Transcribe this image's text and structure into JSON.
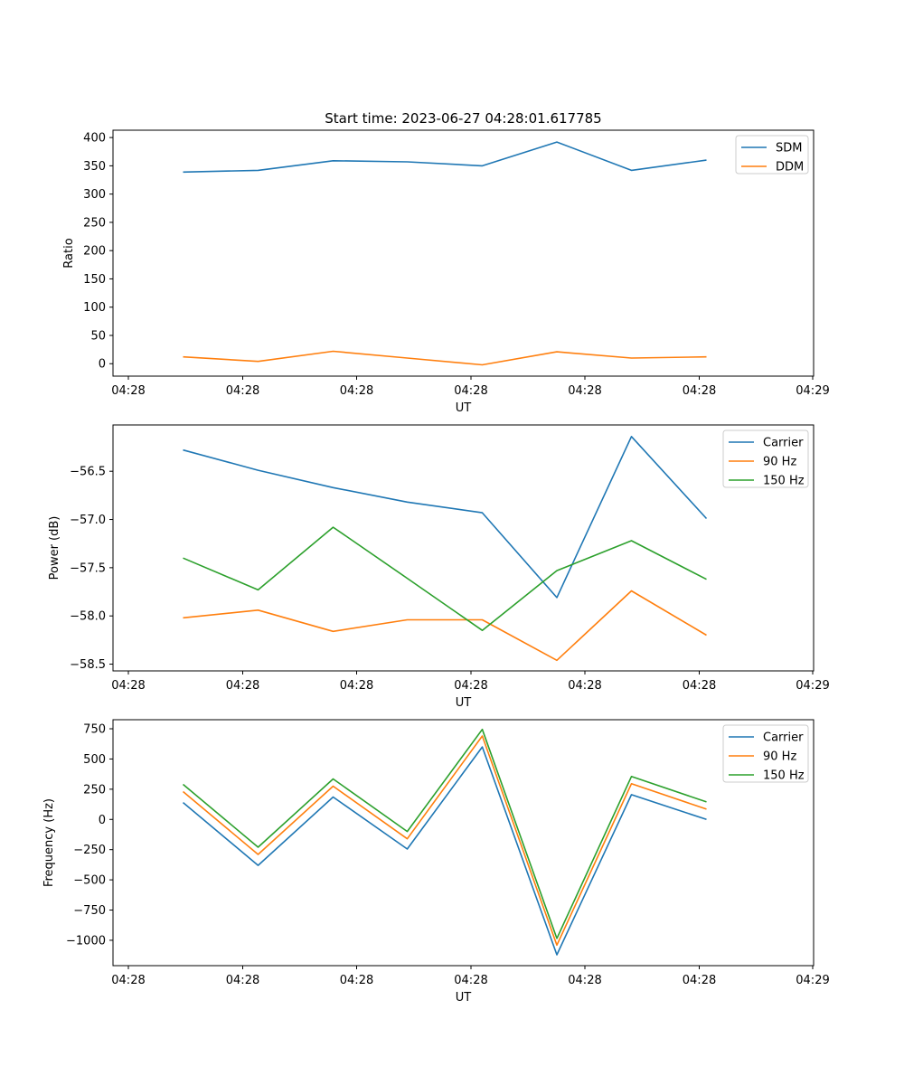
{
  "figure": {
    "title": "Start time: 2023-06-27 04:28:01.617785"
  },
  "chart_data": [
    {
      "type": "line",
      "xlabel": "UT",
      "ylabel": "Ratio",
      "x_tick_labels": [
        "04:28",
        "04:28",
        "04:28",
        "04:28",
        "04:28",
        "04:28",
        "04:29"
      ],
      "yticks": [
        0,
        50,
        100,
        150,
        200,
        250,
        300,
        350,
        400
      ],
      "ytick_labels": [
        "0",
        "50",
        "100",
        "150",
        "200",
        "250",
        "300",
        "350",
        "400"
      ],
      "ylim": [
        -22,
        413
      ],
      "legend_position": "upper right",
      "grid": false,
      "series": [
        {
          "name": "SDM",
          "color": "#1f77b4",
          "values": [
            339,
            342,
            359,
            357,
            350,
            392,
            342,
            360
          ]
        },
        {
          "name": "DDM",
          "color": "#ff7f0e",
          "values": [
            12,
            4,
            22,
            10,
            -2,
            21,
            10,
            12
          ]
        }
      ]
    },
    {
      "type": "line",
      "xlabel": "UT",
      "ylabel": "Power (dB)",
      "x_tick_labels": [
        "04:28",
        "04:28",
        "04:28",
        "04:28",
        "04:28",
        "04:28",
        "04:29"
      ],
      "yticks": [
        -58.5,
        -58.0,
        -57.5,
        -57.0,
        -56.5
      ],
      "ytick_labels": [
        "−58.5",
        "−58.0",
        "−57.5",
        "−57.0",
        "−56.5"
      ],
      "ylim": [
        -58.57,
        -56.02
      ],
      "legend_position": "upper right",
      "grid": false,
      "series": [
        {
          "name": "Carrier",
          "color": "#1f77b4",
          "values": [
            -56.28,
            -56.49,
            -56.67,
            -56.82,
            -56.93,
            -57.81,
            -56.14,
            -56.99
          ]
        },
        {
          "name": "90 Hz",
          "color": "#ff7f0e",
          "values": [
            -58.02,
            -57.94,
            -58.16,
            -58.04,
            -58.04,
            -58.46,
            -57.74,
            -58.2
          ]
        },
        {
          "name": "150 Hz",
          "color": "#2ca02c",
          "values": [
            -57.4,
            -57.73,
            -57.08,
            -57.61,
            -58.15,
            -57.53,
            -57.22,
            -57.62
          ]
        }
      ]
    },
    {
      "type": "line",
      "xlabel": "UT",
      "ylabel": "Frequency (Hz)",
      "x_tick_labels": [
        "04:28",
        "04:28",
        "04:28",
        "04:28",
        "04:28",
        "04:28",
        "04:29"
      ],
      "yticks": [
        -1000,
        -750,
        -500,
        -250,
        0,
        250,
        500,
        750
      ],
      "ytick_labels": [
        "−1000",
        "−750",
        "−500",
        "−250",
        "0",
        "250",
        "500",
        "750"
      ],
      "ylim": [
        -1210,
        825
      ],
      "legend_position": "upper right",
      "grid": false,
      "series": [
        {
          "name": "Carrier",
          "color": "#1f77b4",
          "values": [
            140,
            -380,
            185,
            -245,
            600,
            -1120,
            205,
            0
          ]
        },
        {
          "name": "90 Hz",
          "color": "#ff7f0e",
          "values": [
            230,
            -290,
            275,
            -160,
            690,
            -1040,
            295,
            85
          ]
        },
        {
          "name": "150 Hz",
          "color": "#2ca02c",
          "values": [
            290,
            -230,
            335,
            -100,
            745,
            -985,
            355,
            145
          ]
        }
      ]
    }
  ]
}
